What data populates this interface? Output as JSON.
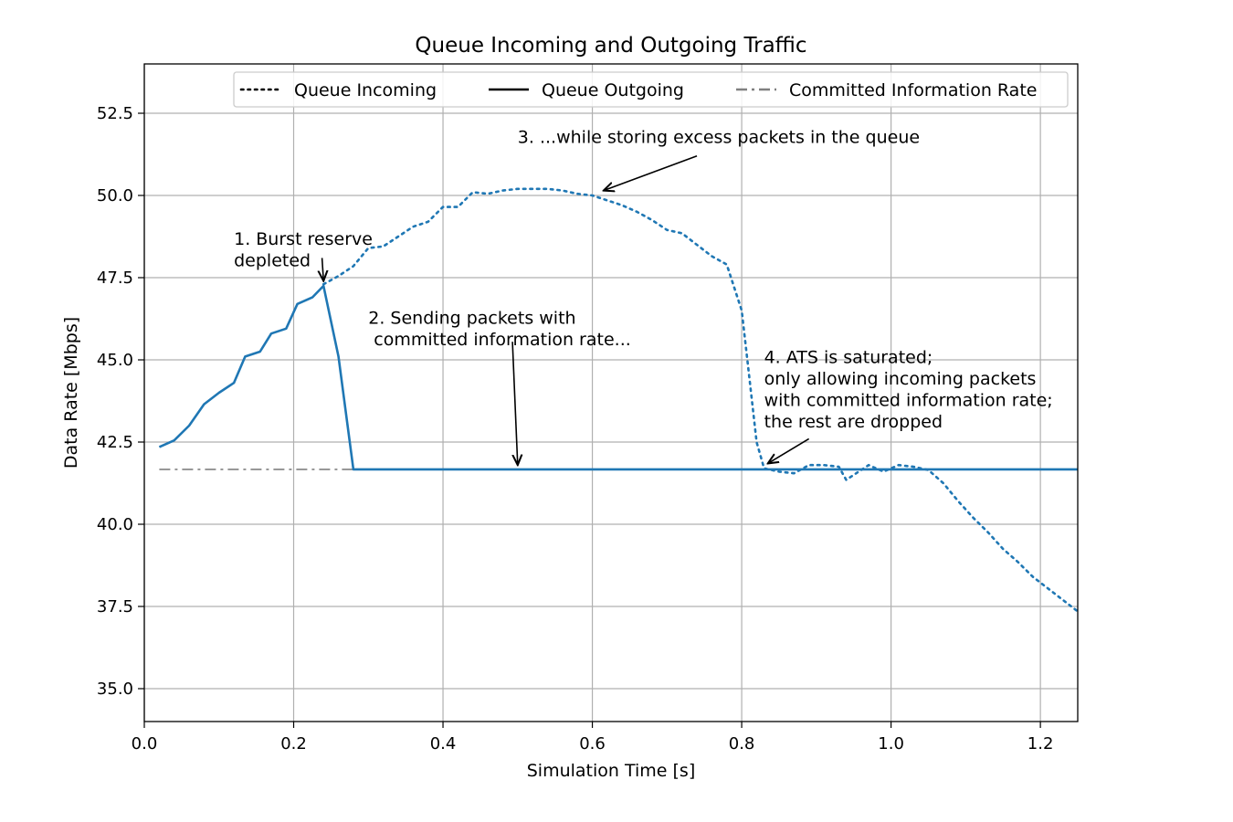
{
  "chart_data": {
    "type": "line",
    "title": "Queue Incoming and Outgoing Traffic",
    "xlabel": "Simulation Time [s]",
    "ylabel": "Data Rate [Mbps]",
    "xlim": [
      0.0,
      1.25
    ],
    "ylim": [
      34.0,
      54.0
    ],
    "xticks": [
      "0.0",
      "0.2",
      "0.4",
      "0.6",
      "0.8",
      "1.0",
      "1.2"
    ],
    "yticks": [
      "35.0",
      "37.5",
      "40.0",
      "42.5",
      "45.0",
      "47.5",
      "50.0",
      "52.5"
    ],
    "grid": true,
    "legend_position": "top",
    "colors": {
      "series": "#1f77b4",
      "cir": "#808080",
      "grid": "#b0b0b0",
      "legend_line": "#000000"
    },
    "legend": [
      {
        "label": "Queue Incoming",
        "style": "dotted"
      },
      {
        "label": "Queue Outgoing",
        "style": "solid"
      },
      {
        "label": "Committed Information Rate",
        "style": "dashdot"
      }
    ],
    "series": [
      {
        "name": "Queue Incoming",
        "style": "dotted",
        "x": [
          0.24,
          0.26,
          0.28,
          0.3,
          0.32,
          0.34,
          0.36,
          0.38,
          0.4,
          0.42,
          0.44,
          0.46,
          0.48,
          0.5,
          0.52,
          0.54,
          0.56,
          0.58,
          0.6,
          0.62,
          0.64,
          0.66,
          0.68,
          0.7,
          0.72,
          0.74,
          0.76,
          0.78,
          0.79,
          0.8,
          0.81,
          0.82,
          0.83,
          0.85,
          0.87,
          0.89,
          0.91,
          0.93,
          0.94,
          0.95,
          0.97,
          0.99,
          1.01,
          1.03,
          1.05,
          1.07,
          1.09,
          1.11,
          1.13,
          1.15,
          1.17,
          1.19,
          1.21,
          1.23,
          1.25
        ],
        "y": [
          47.3,
          47.55,
          47.85,
          48.4,
          48.45,
          48.75,
          49.05,
          49.2,
          49.65,
          49.65,
          50.1,
          50.05,
          50.15,
          50.2,
          50.2,
          50.2,
          50.15,
          50.05,
          50.0,
          49.85,
          49.7,
          49.5,
          49.25,
          48.95,
          48.85,
          48.5,
          48.15,
          47.9,
          47.2,
          46.5,
          44.5,
          42.5,
          41.7,
          41.6,
          41.55,
          41.8,
          41.8,
          41.75,
          41.35,
          41.5,
          41.8,
          41.6,
          41.8,
          41.75,
          41.65,
          41.25,
          40.7,
          40.2,
          39.75,
          39.25,
          38.85,
          38.4,
          38.05,
          37.7,
          37.35
        ]
      },
      {
        "name": "Queue Outgoing",
        "style": "solid",
        "x": [
          0.02,
          0.04,
          0.06,
          0.08,
          0.1,
          0.12,
          0.135,
          0.155,
          0.17,
          0.19,
          0.205,
          0.225,
          0.24,
          0.26,
          0.28,
          1.25
        ],
        "y": [
          42.35,
          42.55,
          43.0,
          43.65,
          44.0,
          44.3,
          45.1,
          45.25,
          45.8,
          45.95,
          46.7,
          46.9,
          47.25,
          45.1,
          41.67,
          41.67
        ]
      },
      {
        "name": "Committed Information Rate",
        "style": "dashdot",
        "x": [
          0.02,
          1.25
        ],
        "y": [
          41.67,
          41.67
        ]
      }
    ],
    "annotations": [
      {
        "lines": [
          "1. Burst reserve",
          "depleted"
        ],
        "text_at": [
          0.12,
          48.5
        ],
        "arrow_from": [
          0.238,
          48.1
        ],
        "arrow_to": [
          0.24,
          47.4
        ]
      },
      {
        "lines": [
          "2. Sending packets with",
          " committed information rate..."
        ],
        "text_at": [
          0.3,
          46.1
        ],
        "arrow_from": [
          0.493,
          45.55
        ],
        "arrow_to": [
          0.5,
          41.8
        ]
      },
      {
        "lines": [
          "3. ...while storing excess packets in the queue"
        ],
        "text_at": [
          0.5,
          51.6
        ],
        "arrow_from": [
          0.74,
          51.2
        ],
        "arrow_to": [
          0.615,
          50.15
        ]
      },
      {
        "lines": [
          "4. ATS is saturated;",
          "only allowing incoming packets",
          "with committed information rate;",
          "the rest are dropped"
        ],
        "text_at": [
          0.83,
          44.9
        ],
        "arrow_from": [
          0.89,
          42.6
        ],
        "arrow_to": [
          0.835,
          41.85
        ]
      }
    ]
  }
}
